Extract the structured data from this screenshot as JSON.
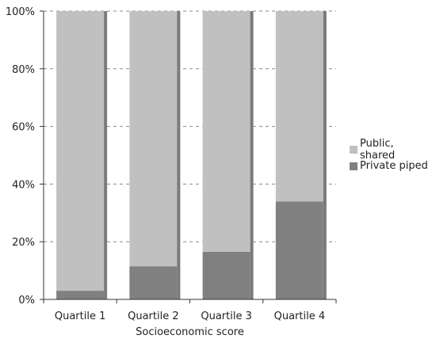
{
  "chart_data": {
    "type": "bar",
    "stacked": true,
    "categories": [
      "Quartile 1",
      "Quartile 2",
      "Quartile 3",
      "Quartile 4"
    ],
    "series": [
      {
        "name": "Private piped",
        "values": [
          3,
          11.5,
          16.5,
          34
        ],
        "color": "#808080"
      },
      {
        "name": "Public, shared",
        "values": [
          97,
          88.5,
          83.5,
          66
        ],
        "color": "#c0c0c0"
      }
    ],
    "xlabel": "Socioeconomic score",
    "ylabel": "",
    "ylim": [
      0,
      100
    ],
    "yticks": [
      "0%",
      "20%",
      "40%",
      "60%",
      "80%",
      "100%"
    ],
    "grid": true,
    "legend_position": "right"
  },
  "legend": [
    {
      "label": "Public, shared",
      "color": "#c0c0c0"
    },
    {
      "label": "Private piped",
      "color": "#808080"
    }
  ]
}
